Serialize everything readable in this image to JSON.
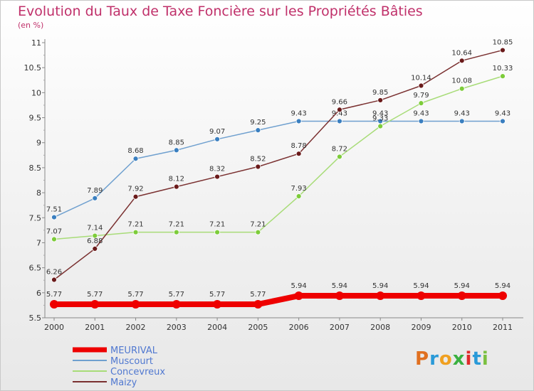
{
  "page": {
    "title": "Evolution du Taux de Taxe Foncière sur les Propriétés Bâties",
    "unit": "(en %)",
    "logo": "Proxiti"
  },
  "chart_data": {
    "type": "line",
    "title": "Evolution du Taux de Taxe Foncière sur les Propriétés Bâties",
    "ylabel": "(en %)",
    "xlabel": "",
    "categories": [
      "2000",
      "2001",
      "2002",
      "2003",
      "2004",
      "2005",
      "2006",
      "2007",
      "2008",
      "2009",
      "2010",
      "2011"
    ],
    "ylim": [
      5.5,
      11
    ],
    "yticks": [
      "5.5",
      "6",
      "6.5",
      "7",
      "7.5",
      "8",
      "8.5",
      "9",
      "9.5",
      "10",
      "10.5",
      "11"
    ],
    "legend_position": "bottom-left",
    "series": [
      {
        "name": "MEURIVAL",
        "color": "#ee0000",
        "values": [
          5.77,
          5.77,
          5.77,
          5.77,
          5.77,
          5.77,
          5.94,
          5.94,
          5.94,
          5.94,
          5.94,
          5.94
        ],
        "labels": [
          "5.77",
          "5.77",
          "5.77",
          "5.77",
          "5.77",
          "5.77",
          "5.94",
          "5.94",
          "5.94",
          "5.94",
          "5.94",
          "5.94"
        ]
      },
      {
        "name": "Muscourt",
        "color": "#6fa0cf",
        "marker": "#3a7fc0",
        "values": [
          7.51,
          7.89,
          8.68,
          8.85,
          9.07,
          9.25,
          9.43,
          9.43,
          9.43,
          9.43,
          9.43,
          9.43
        ],
        "labels": [
          "7.51",
          "7.89",
          "8.68",
          "8.85",
          "9.07",
          "9.25",
          "9.43",
          "9.43",
          "9.43",
          "9.43",
          "9.43",
          "9.43"
        ]
      },
      {
        "name": "Concevreux",
        "color": "#a8dc78",
        "marker": "#7dcc3a",
        "values": [
          7.07,
          7.14,
          7.21,
          7.21,
          7.21,
          7.21,
          7.93,
          8.72,
          9.33,
          9.79,
          10.08,
          10.33
        ],
        "labels": [
          "7.07",
          "7.14",
          "7.21",
          "7.21",
          "7.21",
          "7.21",
          "7.93",
          "8.72",
          "9.33",
          "9.79",
          "10.08",
          "10.33"
        ]
      },
      {
        "name": "Maizy",
        "color": "#7a3030",
        "marker": "#6a1a1a",
        "values": [
          6.26,
          6.88,
          7.92,
          8.12,
          8.32,
          8.52,
          8.78,
          9.66,
          9.85,
          10.14,
          10.64,
          10.85
        ],
        "labels": [
          "6.26",
          "6.88",
          "7.92",
          "8.12",
          "8.32",
          "8.52",
          "8.78",
          "9.66",
          "9.85",
          "10.14",
          "10.64",
          "10.85"
        ]
      }
    ]
  }
}
